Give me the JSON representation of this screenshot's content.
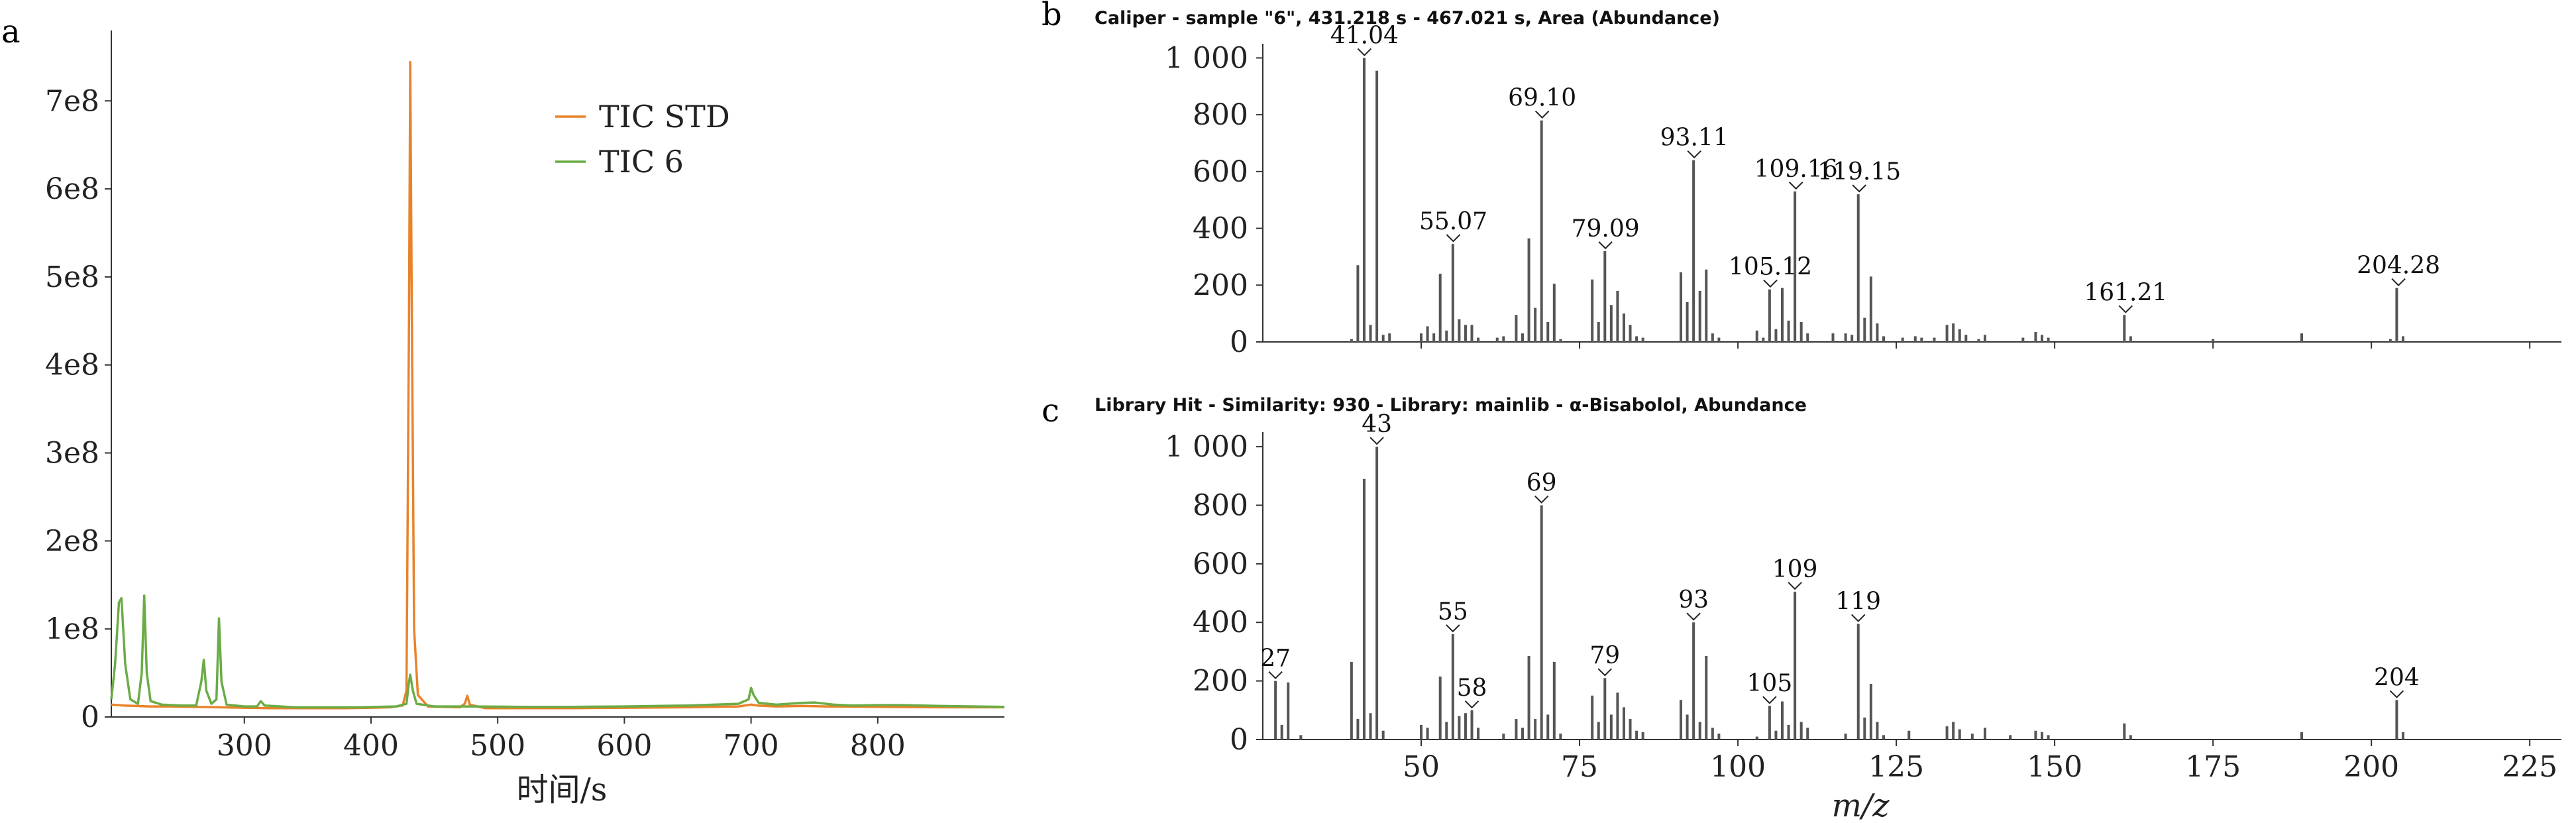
{
  "chart_data": [
    {
      "panel": "a",
      "type": "line",
      "xlabel": "时间/s",
      "ylabel": "",
      "xlim": [
        195,
        900
      ],
      "ylim": [
        0,
        780000000.0
      ],
      "x_ticks": [
        300,
        400,
        500,
        600,
        700,
        800
      ],
      "y_ticks": [
        0,
        100000000.0,
        200000000.0,
        300000000.0,
        400000000.0,
        500000000.0,
        600000000.0,
        700000000.0
      ],
      "y_tick_labels": [
        "0",
        "1e8",
        "2e8",
        "3e8",
        "4e8",
        "5e8",
        "6e8",
        "7e8"
      ],
      "legend_position": "top-right",
      "series": [
        {
          "name": "TIC STD",
          "color": "#e8832a",
          "points": [
            [
              195,
              14000000.0
            ],
            [
              205,
              13000000.0
            ],
            [
              215,
              12500000.0
            ],
            [
              225,
              12000000.0
            ],
            [
              240,
              12000000.0
            ],
            [
              260,
              11500000.0
            ],
            [
              280,
              11000000.0
            ],
            [
              300,
              10500000.0
            ],
            [
              320,
              10000000.0
            ],
            [
              340,
              10000000.0
            ],
            [
              360,
              10000000.0
            ],
            [
              380,
              10000000.0
            ],
            [
              400,
              10500000.0
            ],
            [
              415,
              11000000.0
            ],
            [
              425,
              13000000.0
            ],
            [
              428,
              30000000.0
            ],
            [
              430,
              450000000.0
            ],
            [
              431,
              744000000.0
            ],
            [
              432,
              500000000.0
            ],
            [
              434,
              100000000.0
            ],
            [
              437,
              25000000.0
            ],
            [
              445,
              12000000.0
            ],
            [
              470,
              11000000.0
            ],
            [
              474,
              15000000.0
            ],
            [
              476,
              24000000.0
            ],
            [
              478,
              14000000.0
            ],
            [
              490,
              10000000.0
            ],
            [
              520,
              10000000.0
            ],
            [
              560,
              10000000.0
            ],
            [
              600,
              10500000.0
            ],
            [
              650,
              11000000.0
            ],
            [
              690,
              12000000.0
            ],
            [
              700,
              14000000.0
            ],
            [
              705,
              13000000.0
            ],
            [
              720,
              12000000.0
            ],
            [
              740,
              12500000.0
            ],
            [
              760,
              12000000.0
            ],
            [
              800,
              11500000.0
            ],
            [
              850,
              11000000.0
            ],
            [
              900,
              11000000.0
            ]
          ]
        },
        {
          "name": "TIC 6",
          "color": "#6aac46",
          "points": [
            [
              195,
              20000000.0
            ],
            [
              198,
              60000000.0
            ],
            [
              201,
              130000000.0
            ],
            [
              203,
              135000000.0
            ],
            [
              206,
              60000000.0
            ],
            [
              210,
              20000000.0
            ],
            [
              216,
              15000000.0
            ],
            [
              219,
              50000000.0
            ],
            [
              221,
              138000000.0
            ],
            [
              223,
              50000000.0
            ],
            [
              226,
              18000000.0
            ],
            [
              235,
              14000000.0
            ],
            [
              250,
              13000000.0
            ],
            [
              262,
              13000000.0
            ],
            [
              266,
              40000000.0
            ],
            [
              268,
              65000000.0
            ],
            [
              270,
              30000000.0
            ],
            [
              274,
              15000000.0
            ],
            [
              278,
              20000000.0
            ],
            [
              280,
              112000000.0
            ],
            [
              282,
              40000000.0
            ],
            [
              286,
              14000000.0
            ],
            [
              300,
              12000000.0
            ],
            [
              310,
              12000000.0
            ],
            [
              313,
              18000000.0
            ],
            [
              316,
              13000000.0
            ],
            [
              340,
              11000000.0
            ],
            [
              360,
              11000000.0
            ],
            [
              390,
              11000000.0
            ],
            [
              420,
              12000000.0
            ],
            [
              428,
              15000000.0
            ],
            [
              430,
              40000000.0
            ],
            [
              431,
              48000000.0
            ],
            [
              433,
              30000000.0
            ],
            [
              436,
              15000000.0
            ],
            [
              450,
              12000000.0
            ],
            [
              480,
              12000000.0
            ],
            [
              520,
              11500000.0
            ],
            [
              560,
              11500000.0
            ],
            [
              600,
              12000000.0
            ],
            [
              650,
              13000000.0
            ],
            [
              690,
              15000000.0
            ],
            [
              698,
              20000000.0
            ],
            [
              700,
              33000000.0
            ],
            [
              702,
              25000000.0
            ],
            [
              706,
              16000000.0
            ],
            [
              720,
              14000000.0
            ],
            [
              740,
              16000000.0
            ],
            [
              750,
              16500000.0
            ],
            [
              765,
              14000000.0
            ],
            [
              780,
              13000000.0
            ],
            [
              800,
              13500000.0
            ],
            [
              820,
              13500000.0
            ],
            [
              850,
              12500000.0
            ],
            [
              900,
              11500000.0
            ]
          ]
        }
      ]
    },
    {
      "panel": "b",
      "type": "bar",
      "title": "Caliper - sample \"6\", 431.218 s - 467.021 s, Area (Abundance)",
      "xlim": [
        25,
        230
      ],
      "ylim": [
        0,
        1050
      ],
      "y_ticks": [
        0,
        200,
        400,
        600,
        800,
        1000
      ],
      "y_tick_labels": [
        "0",
        "200",
        "400",
        "600",
        "800",
        "1 000"
      ],
      "x_ticks": [
        50,
        75,
        100,
        125,
        150,
        175,
        200,
        225
      ],
      "color": "#555555",
      "peaks": [
        [
          39,
          10
        ],
        [
          40,
          270
        ],
        [
          41,
          1000
        ],
        [
          42,
          60
        ],
        [
          43,
          955
        ],
        [
          44,
          25
        ],
        [
          45,
          30
        ],
        [
          50,
          30
        ],
        [
          51,
          55
        ],
        [
          52,
          30
        ],
        [
          53,
          240
        ],
        [
          54,
          40
        ],
        [
          55,
          345
        ],
        [
          56,
          80
        ],
        [
          57,
          60
        ],
        [
          58,
          60
        ],
        [
          59,
          15
        ],
        [
          62,
          15
        ],
        [
          63,
          20
        ],
        [
          65,
          95
        ],
        [
          66,
          30
        ],
        [
          67,
          365
        ],
        [
          68,
          120
        ],
        [
          69,
          780
        ],
        [
          70,
          70
        ],
        [
          71,
          205
        ],
        [
          72,
          10
        ],
        [
          77,
          220
        ],
        [
          78,
          70
        ],
        [
          79,
          320
        ],
        [
          80,
          130
        ],
        [
          81,
          180
        ],
        [
          82,
          100
        ],
        [
          83,
          60
        ],
        [
          84,
          20
        ],
        [
          85,
          15
        ],
        [
          91,
          245
        ],
        [
          92,
          140
        ],
        [
          93,
          640
        ],
        [
          94,
          180
        ],
        [
          95,
          255
        ],
        [
          96,
          30
        ],
        [
          97,
          15
        ],
        [
          103,
          40
        ],
        [
          104,
          15
        ],
        [
          105,
          185
        ],
        [
          106,
          45
        ],
        [
          107,
          190
        ],
        [
          108,
          75
        ],
        [
          109,
          530
        ],
        [
          110,
          70
        ],
        [
          111,
          30
        ],
        [
          115,
          30
        ],
        [
          117,
          30
        ],
        [
          118,
          25
        ],
        [
          119,
          520
        ],
        [
          120,
          85
        ],
        [
          121,
          230
        ],
        [
          122,
          65
        ],
        [
          123,
          20
        ],
        [
          126,
          15
        ],
        [
          128,
          20
        ],
        [
          129,
          15
        ],
        [
          131,
          15
        ],
        [
          133,
          60
        ],
        [
          134,
          65
        ],
        [
          135,
          45
        ],
        [
          136,
          25
        ],
        [
          138,
          10
        ],
        [
          139,
          25
        ],
        [
          145,
          15
        ],
        [
          147,
          35
        ],
        [
          148,
          25
        ],
        [
          149,
          15
        ],
        [
          161,
          95
        ],
        [
          162,
          20
        ],
        [
          175,
          10
        ],
        [
          189,
          30
        ],
        [
          203,
          10
        ],
        [
          204,
          190
        ],
        [
          205,
          20
        ]
      ],
      "labels": [
        [
          41.04,
          "41.04"
        ],
        [
          55.07,
          "55.07"
        ],
        [
          69.1,
          "69.10"
        ],
        [
          79.09,
          "79.09"
        ],
        [
          93.11,
          "93.11"
        ],
        [
          105.12,
          "105.12"
        ],
        [
          109.16,
          "109.16"
        ],
        [
          119.15,
          "119.15"
        ],
        [
          161.21,
          "161.21"
        ],
        [
          204.28,
          "204.28"
        ]
      ]
    },
    {
      "panel": "c",
      "type": "bar",
      "title": "Library Hit - Similarity: 930 - Library: mainlib - α-Bisabolol, Abundance",
      "xlabel": "m/z",
      "xlim": [
        25,
        230
      ],
      "ylim": [
        0,
        1050
      ],
      "y_ticks": [
        0,
        200,
        400,
        600,
        800,
        1000
      ],
      "y_tick_labels": [
        "0",
        "200",
        "400",
        "600",
        "800",
        "1 000"
      ],
      "x_ticks": [
        50,
        75,
        100,
        125,
        150,
        175,
        200,
        225
      ],
      "color": "#555555",
      "peaks": [
        [
          27,
          200
        ],
        [
          28,
          50
        ],
        [
          29,
          195
        ],
        [
          31,
          15
        ],
        [
          39,
          265
        ],
        [
          40,
          70
        ],
        [
          41,
          890
        ],
        [
          42,
          90
        ],
        [
          43,
          1000
        ],
        [
          44,
          30
        ],
        [
          50,
          50
        ],
        [
          51,
          40
        ],
        [
          53,
          215
        ],
        [
          54,
          60
        ],
        [
          55,
          360
        ],
        [
          56,
          80
        ],
        [
          57,
          90
        ],
        [
          58,
          100
        ],
        [
          59,
          40
        ],
        [
          63,
          20
        ],
        [
          65,
          70
        ],
        [
          66,
          40
        ],
        [
          67,
          285
        ],
        [
          68,
          70
        ],
        [
          69,
          800
        ],
        [
          70,
          85
        ],
        [
          71,
          265
        ],
        [
          72,
          20
        ],
        [
          77,
          150
        ],
        [
          78,
          60
        ],
        [
          79,
          210
        ],
        [
          80,
          85
        ],
        [
          81,
          160
        ],
        [
          82,
          110
        ],
        [
          83,
          70
        ],
        [
          84,
          30
        ],
        [
          85,
          25
        ],
        [
          91,
          135
        ],
        [
          92,
          85
        ],
        [
          93,
          400
        ],
        [
          94,
          60
        ],
        [
          95,
          285
        ],
        [
          96,
          40
        ],
        [
          97,
          20
        ],
        [
          103,
          10
        ],
        [
          105,
          115
        ],
        [
          106,
          30
        ],
        [
          107,
          130
        ],
        [
          108,
          50
        ],
        [
          109,
          505
        ],
        [
          110,
          60
        ],
        [
          111,
          40
        ],
        [
          117,
          20
        ],
        [
          119,
          395
        ],
        [
          120,
          75
        ],
        [
          121,
          190
        ],
        [
          122,
          60
        ],
        [
          123,
          15
        ],
        [
          127,
          30
        ],
        [
          133,
          45
        ],
        [
          134,
          60
        ],
        [
          135,
          35
        ],
        [
          137,
          20
        ],
        [
          139,
          40
        ],
        [
          143,
          15
        ],
        [
          147,
          30
        ],
        [
          148,
          25
        ],
        [
          149,
          15
        ],
        [
          161,
          55
        ],
        [
          162,
          15
        ],
        [
          189,
          25
        ],
        [
          204,
          135
        ],
        [
          205,
          25
        ]
      ],
      "labels": [
        [
          27,
          "27"
        ],
        [
          43,
          "43"
        ],
        [
          55,
          "55"
        ],
        [
          58,
          "58"
        ],
        [
          69,
          "69"
        ],
        [
          79,
          "79"
        ],
        [
          93,
          "93"
        ],
        [
          105,
          "105"
        ],
        [
          109,
          "109"
        ],
        [
          119,
          "119"
        ],
        [
          204,
          "204"
        ]
      ]
    }
  ],
  "panel_letters": {
    "a": "a",
    "b": "b",
    "c": "c"
  }
}
